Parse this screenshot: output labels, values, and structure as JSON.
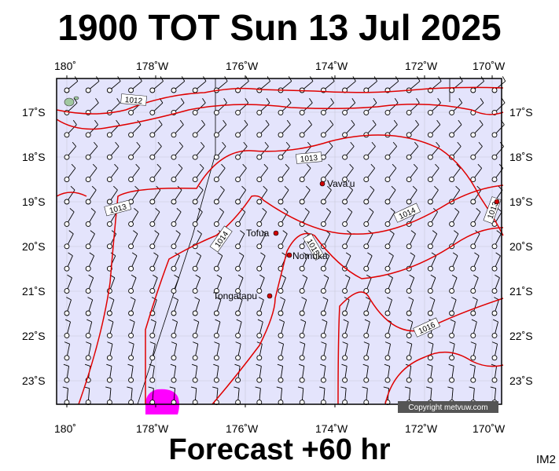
{
  "title": "1900 TOT Sun 13 Jul 2025",
  "footer": "Forecast +60 hr",
  "corner_code": "IM2",
  "copyright": "Copyright metvuw.com",
  "lon_labels": [
    "180˚",
    "178˚W",
    "176˚W",
    "174˚W",
    "172˚W",
    "170˚W"
  ],
  "lat_labels": [
    "17˚S",
    "18˚S",
    "19˚S",
    "20˚S",
    "21˚S",
    "22˚S",
    "23˚S"
  ],
  "places": [
    "Vava'u",
    "Tofua",
    "Nomuka",
    "Tongatapu"
  ],
  "isobars": [
    "1012",
    "1013",
    "1013",
    "1014",
    "1014",
    "1015",
    "1016",
    "1013"
  ],
  "colors": {
    "map_bg": "#e4e4fc",
    "isobar": "#e00000",
    "rain": "#ff00ff",
    "land": "#a0c8a0",
    "place": "#d00000"
  }
}
